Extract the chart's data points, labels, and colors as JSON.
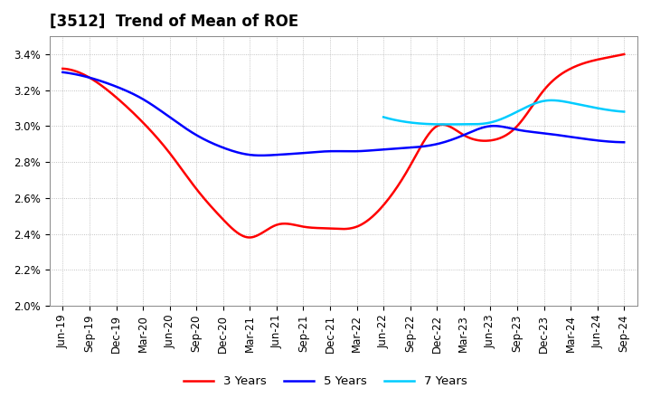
{
  "title": "[3512]  Trend of Mean of ROE",
  "background_color": "#ffffff",
  "plot_background_color": "#ffffff",
  "grid_color": "#aaaaaa",
  "ylim": [
    0.02,
    0.035
  ],
  "yticks": [
    0.02,
    0.022,
    0.024,
    0.026,
    0.028,
    0.03,
    0.032,
    0.034
  ],
  "x_labels": [
    "Jun-19",
    "Sep-19",
    "Dec-19",
    "Mar-20",
    "Jun-20",
    "Sep-20",
    "Dec-20",
    "Mar-21",
    "Jun-21",
    "Sep-21",
    "Dec-21",
    "Mar-22",
    "Jun-22",
    "Sep-22",
    "Dec-22",
    "Mar-23",
    "Jun-23",
    "Sep-23",
    "Dec-23",
    "Mar-24",
    "Jun-24",
    "Sep-24"
  ],
  "series": {
    "3 Years": {
      "color": "#ff0000",
      "linewidth": 1.8,
      "values": [
        0.0332,
        0.0327,
        0.0316,
        0.0302,
        0.0285,
        0.0265,
        0.0248,
        0.0238,
        0.0245,
        0.0244,
        0.0243,
        0.0244,
        0.0256,
        0.0278,
        0.03,
        0.0295,
        0.0292,
        0.03,
        0.032,
        0.0332,
        0.0337,
        0.034
      ]
    },
    "5 Years": {
      "color": "#0000ff",
      "linewidth": 1.8,
      "values": [
        0.033,
        0.0327,
        0.0322,
        0.0315,
        0.0305,
        0.0295,
        0.0288,
        0.0284,
        0.0284,
        0.0285,
        0.0286,
        0.0286,
        0.0287,
        0.0288,
        0.029,
        0.0295,
        0.03,
        0.0298,
        0.0296,
        0.0294,
        0.0292,
        0.0291
      ]
    },
    "7 Years": {
      "color": "#00ccff",
      "linewidth": 1.8,
      "values": [
        null,
        null,
        null,
        null,
        null,
        null,
        null,
        null,
        null,
        null,
        null,
        null,
        0.0305,
        0.0302,
        0.0301,
        0.0301,
        0.0302,
        0.0308,
        0.0314,
        0.0313,
        0.031,
        0.0308
      ]
    },
    "10 Years": {
      "color": "#00aa00",
      "linewidth": 1.8,
      "values": [
        null,
        null,
        null,
        null,
        null,
        null,
        null,
        null,
        null,
        null,
        null,
        null,
        null,
        null,
        null,
        null,
        null,
        null,
        null,
        null,
        null,
        null
      ]
    }
  },
  "legend_ncol": 4,
  "title_fontsize": 12,
  "tick_fontsize": 8.5,
  "legend_fontsize": 9.5
}
